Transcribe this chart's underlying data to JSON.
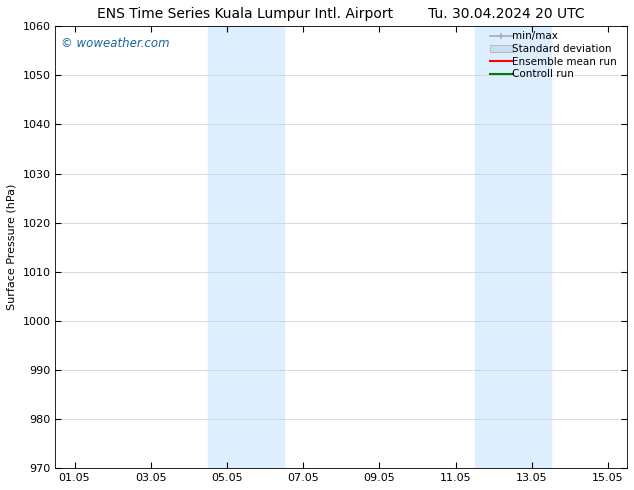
{
  "title_left": "ENS Time Series Kuala Lumpur Intl. Airport",
  "title_right": "Tu. 30.04.2024 20 UTC",
  "ylabel": "Surface Pressure (hPa)",
  "xlabel": "",
  "ylim": [
    970,
    1060
  ],
  "yticks": [
    970,
    980,
    990,
    1000,
    1010,
    1020,
    1030,
    1040,
    1050,
    1060
  ],
  "xtick_labels": [
    "01.05",
    "03.05",
    "05.05",
    "07.05",
    "09.05",
    "11.05",
    "13.05",
    "15.05"
  ],
  "xtick_positions": [
    0,
    2,
    4,
    6,
    8,
    10,
    12,
    14
  ],
  "xlim": [
    -0.5,
    14.5
  ],
  "shaded_bands": [
    {
      "x_start": 3.5,
      "x_end": 5.5
    },
    {
      "x_start": 10.5,
      "x_end": 12.5
    }
  ],
  "background_color": "#ffffff",
  "shade_color": "#ddeeff",
  "watermark_text": "© woweather.com",
  "watermark_color": "#1a6699",
  "grid_color": "#cccccc",
  "legend_items": [
    {
      "label": "min/max",
      "color": "#aaaaaa",
      "style": "line_with_bar"
    },
    {
      "label": "Standard deviation",
      "color": "#ccddee",
      "style": "filled_rect"
    },
    {
      "label": "Ensemble mean run",
      "color": "#ff0000",
      "style": "line"
    },
    {
      "label": "Controll run",
      "color": "#008000",
      "style": "line"
    }
  ],
  "title_fontsize": 10,
  "tick_fontsize": 8,
  "legend_fontsize": 7.5,
  "ylabel_fontsize": 8,
  "watermark_fontsize": 8.5
}
